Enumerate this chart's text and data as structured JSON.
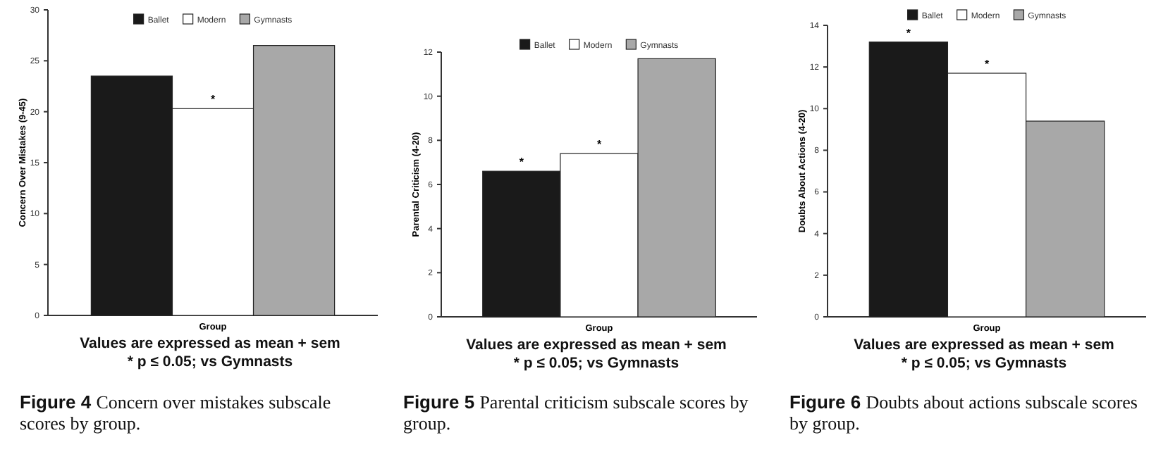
{
  "chart_data": [
    {
      "type": "bar",
      "categories": [
        null
      ],
      "xlabel": "Group",
      "ylabel": "Concern Over Mistakes (9-45)",
      "ylim": [
        0,
        30
      ],
      "yticks": [
        0,
        5,
        10,
        15,
        20,
        25,
        30
      ],
      "legend": "top",
      "grid": false,
      "series": [
        {
          "name": "Ballet",
          "color": "#1a1a1a",
          "values": [
            23.5
          ],
          "value_labels": [
            null
          ]
        },
        {
          "name": "Modern",
          "color": "#ffffff",
          "values": [
            20.3
          ],
          "value_labels": [
            "*"
          ]
        },
        {
          "name": "Gymnasts",
          "color": "#a8a8a8",
          "values": [
            26.5
          ],
          "value_labels": [
            null
          ]
        }
      ],
      "annotations": [
        "Values are expressed as mean + sem",
        "* p ≤ 0.05; vs Gymnasts",
        "Figure 4 Concern over mistakes subscale scores by group."
      ]
    },
    {
      "type": "bar",
      "categories": [
        null
      ],
      "xlabel": "Group",
      "ylabel": "Parental Criticism (4-20)",
      "ylim": [
        0,
        12
      ],
      "yticks": [
        0,
        2,
        4,
        6,
        8,
        10,
        12
      ],
      "legend": "top",
      "grid": false,
      "series": [
        {
          "name": "Ballet",
          "color": "#1a1a1a",
          "values": [
            6.6
          ],
          "value_labels": [
            "*"
          ]
        },
        {
          "name": "Modern",
          "color": "#ffffff",
          "values": [
            7.4
          ],
          "value_labels": [
            "*"
          ]
        },
        {
          "name": "Gymnasts",
          "color": "#a8a8a8",
          "values": [
            11.7
          ],
          "value_labels": [
            null
          ]
        }
      ],
      "annotations": [
        "Values are expressed as mean + sem",
        "* p ≤ 0.05; vs Gymnasts",
        "Figure 5 Parental criticism subscale scores by group."
      ]
    },
    {
      "type": "bar",
      "categories": [
        null
      ],
      "xlabel": "Group",
      "ylabel": "Doubts About Actions (4-20)",
      "ylim": [
        0,
        14
      ],
      "yticks": [
        0,
        2,
        4,
        6,
        8,
        10,
        12,
        14
      ],
      "legend": "top",
      "grid": false,
      "series": [
        {
          "name": "Ballet",
          "color": "#1a1a1a",
          "values": [
            13.2
          ],
          "value_labels": [
            "*"
          ]
        },
        {
          "name": "Modern",
          "color": "#ffffff",
          "values": [
            11.7
          ],
          "value_labels": [
            "*"
          ]
        },
        {
          "name": "Gymnasts",
          "color": "#a8a8a8",
          "values": [
            9.4
          ],
          "value_labels": [
            null
          ]
        }
      ],
      "annotations": [
        "Values are expressed as mean + sem",
        "* p ≤ 0.05; vs Gymnasts",
        "Figure 6 Doubts about actions subscale scores by group."
      ]
    }
  ]
}
